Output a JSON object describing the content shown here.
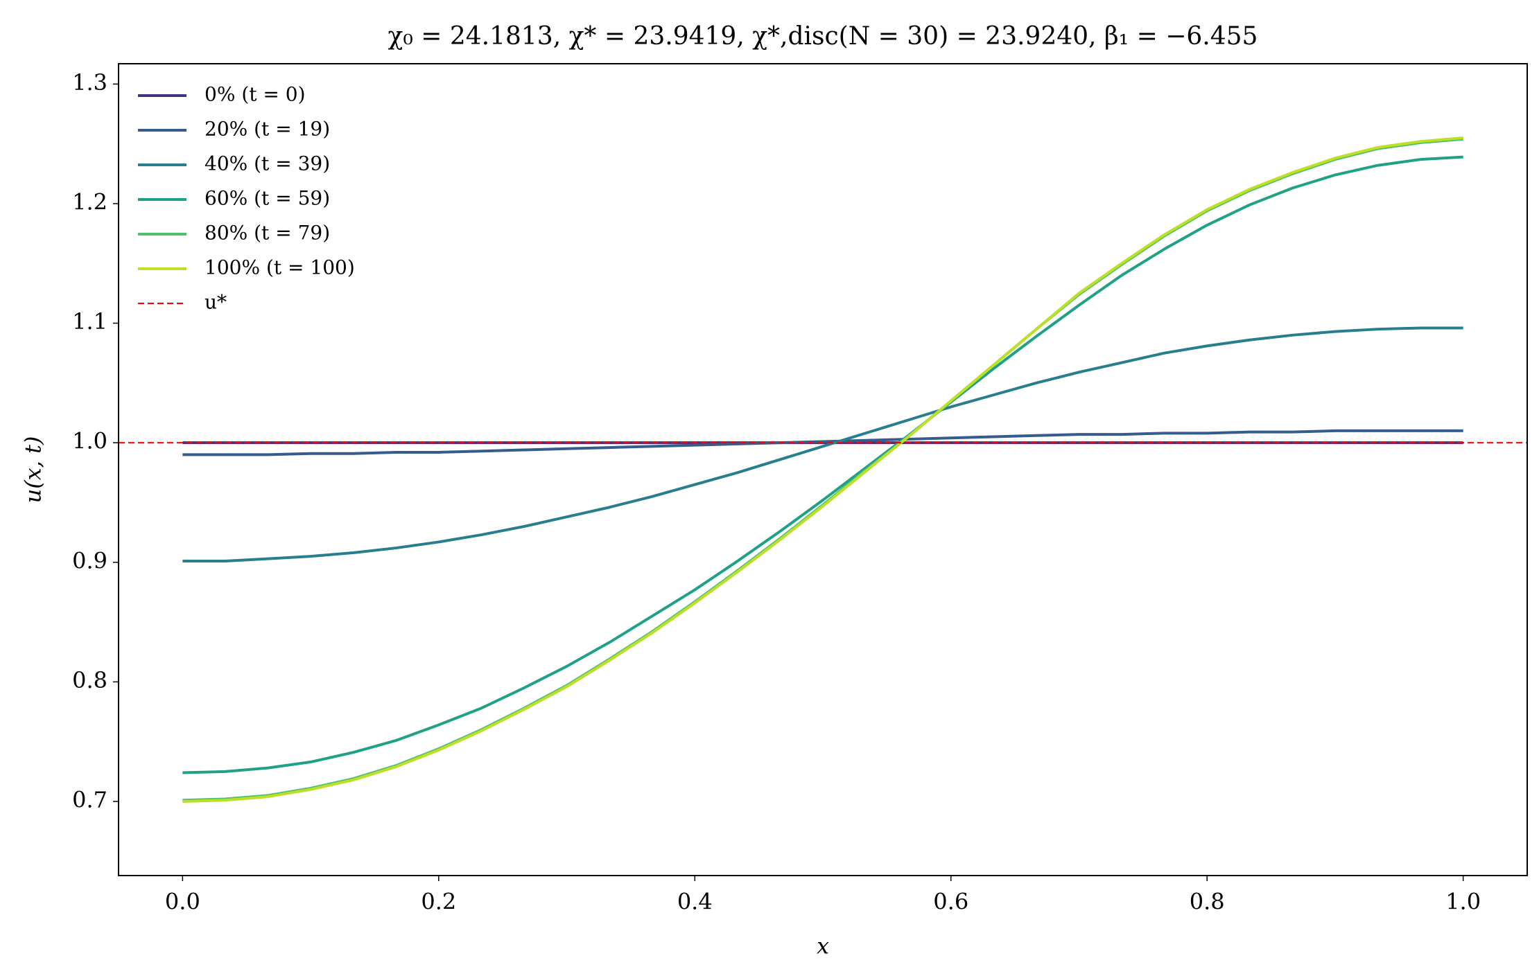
{
  "chart_data": {
    "type": "line",
    "title": "χ₀ = 24.1813,  χ* = 23.9419,  χ*,disc(N = 30) = 23.9240,  β₁ = −6.455",
    "x_label": "x",
    "y_label": "u(x, t)",
    "x": [
      0,
      0.0333,
      0.0667,
      0.1,
      0.1333,
      0.1667,
      0.2,
      0.2333,
      0.2667,
      0.3,
      0.3333,
      0.3667,
      0.4,
      0.4333,
      0.4667,
      0.5,
      0.5333,
      0.5667,
      0.6,
      0.6333,
      0.6667,
      0.7,
      0.7333,
      0.7667,
      0.8,
      0.8333,
      0.8667,
      0.9,
      0.9333,
      0.9667,
      1
    ],
    "series": [
      {
        "name": "0% (t = 0)",
        "color": "#46327e",
        "values": [
          1,
          1,
          1,
          1,
          1,
          1,
          1,
          1,
          1,
          1,
          1,
          1,
          1,
          1,
          1,
          1,
          1,
          1,
          1,
          1,
          1,
          1,
          1,
          1,
          1,
          1,
          1,
          1,
          1,
          1,
          1
        ]
      },
      {
        "name": "20% (t = 19)",
        "color": "#365c8d",
        "values": [
          0.99,
          0.99,
          0.99,
          0.991,
          0.991,
          0.992,
          0.992,
          0.993,
          0.994,
          0.995,
          0.996,
          0.997,
          0.998,
          0.999,
          1.0,
          1.001,
          1.002,
          1.003,
          1.004,
          1.005,
          1.006,
          1.007,
          1.007,
          1.008,
          1.008,
          1.009,
          1.009,
          1.01,
          1.01,
          1.01,
          1.01
        ]
      },
      {
        "name": "40% (t = 39)",
        "color": "#277f8e",
        "values": [
          0.901,
          0.901,
          0.903,
          0.905,
          0.908,
          0.912,
          0.917,
          0.923,
          0.93,
          0.938,
          0.946,
          0.955,
          0.965,
          0.975,
          0.986,
          0.997,
          1.008,
          1.019,
          1.03,
          1.04,
          1.05,
          1.059,
          1.067,
          1.075,
          1.081,
          1.086,
          1.09,
          1.093,
          1.095,
          1.096,
          1.096
        ]
      },
      {
        "name": "60% (t = 59)",
        "color": "#1fa187",
        "values": [
          0.724,
          0.725,
          0.728,
          0.733,
          0.741,
          0.751,
          0.764,
          0.778,
          0.795,
          0.813,
          0.833,
          0.855,
          0.877,
          0.901,
          0.926,
          0.952,
          0.979,
          1.006,
          1.034,
          1.062,
          1.089,
          1.115,
          1.14,
          1.162,
          1.182,
          1.199,
          1.213,
          1.224,
          1.232,
          1.237,
          1.239
        ]
      },
      {
        "name": "80% (t = 79)",
        "color": "#4ac16d",
        "values": [
          0.701,
          0.702,
          0.705,
          0.711,
          0.719,
          0.73,
          0.744,
          0.76,
          0.778,
          0.797,
          0.819,
          0.842,
          0.867,
          0.893,
          0.92,
          0.948,
          0.977,
          1.005,
          1.035,
          1.065,
          1.095,
          1.124,
          1.149,
          1.173,
          1.194,
          1.211,
          1.225,
          1.237,
          1.246,
          1.251,
          1.254
        ]
      },
      {
        "name": "100% (t = 100)",
        "color": "#bddf26",
        "values": [
          0.7,
          0.701,
          0.704,
          0.71,
          0.718,
          0.729,
          0.743,
          0.759,
          0.777,
          0.796,
          0.818,
          0.841,
          0.866,
          0.892,
          0.919,
          0.947,
          0.976,
          1.005,
          1.035,
          1.065,
          1.095,
          1.125,
          1.15,
          1.174,
          1.195,
          1.212,
          1.226,
          1.238,
          1.247,
          1.252,
          1.255
        ]
      }
    ],
    "reference_line": {
      "name": "u*",
      "value": 1,
      "color": "#ff0000",
      "style": "dashed"
    },
    "xlim": [
      -0.05,
      1.05
    ],
    "xticks": [
      {
        "value": 0,
        "label": "0.0"
      },
      0.2,
      0.4,
      0.6,
      0.8,
      {
        "value": 1,
        "label": "1.0"
      }
    ],
    "ylim": [
      0.638,
      1.317
    ],
    "yticks": [
      0.7,
      0.8,
      0.9,
      {
        "value": 1,
        "label": "1.0"
      },
      1.1,
      1.2,
      1.3
    ],
    "legend": "upper left",
    "grid": false
  }
}
